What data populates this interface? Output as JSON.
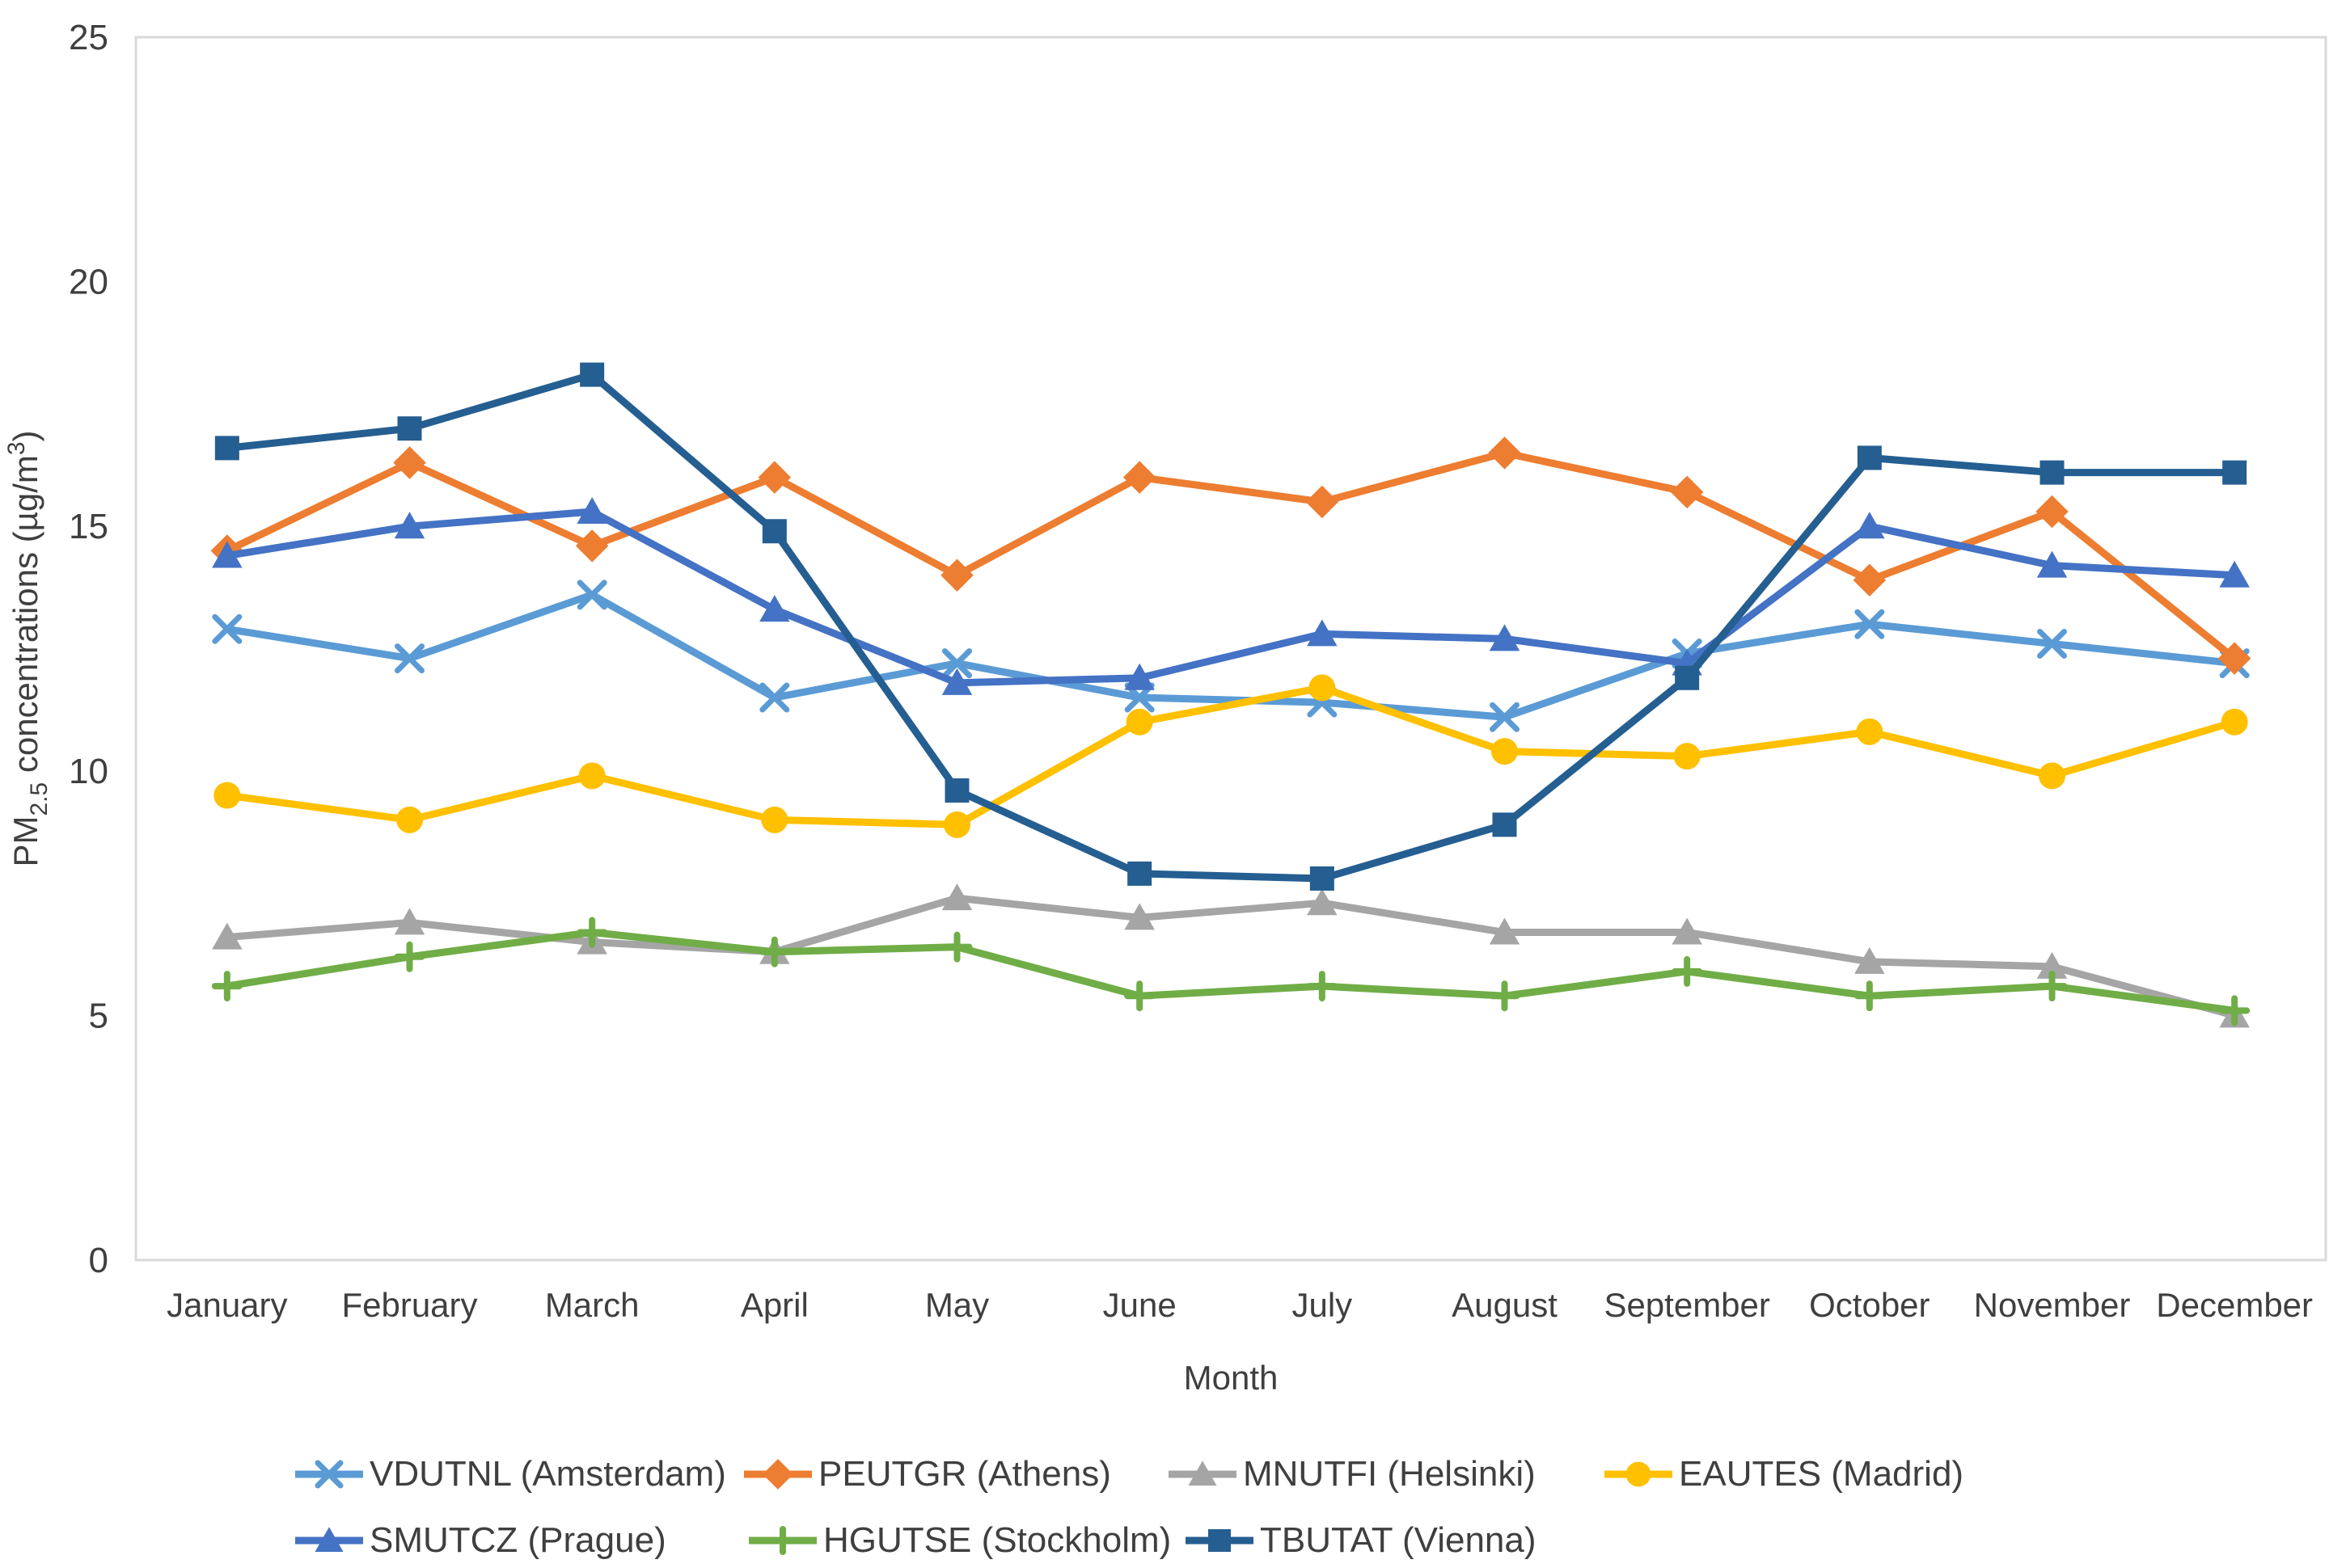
{
  "chart_data": {
    "type": "line",
    "title": "",
    "xlabel": "Month",
    "ylabel": "PM2.5 concentrations (µg/m3)",
    "ylabel_parts": {
      "prefix": "PM",
      "sub": "2.5",
      "mid": " concentrations (µg/m",
      "sup": "3",
      "suffix": ")"
    },
    "ylim": [
      0,
      25
    ],
    "yticks": [
      0,
      5,
      10,
      15,
      20,
      25
    ],
    "grid": false,
    "legend_position": "bottom",
    "categories": [
      "January",
      "February",
      "March",
      "April",
      "May",
      "June",
      "July",
      "August",
      "September",
      "October",
      "November",
      "December"
    ],
    "series": [
      {
        "name": "VDUTNL (Amsterdam)",
        "color": "#5B9BD5",
        "marker": "x",
        "values": [
          12.9,
          12.3,
          13.6,
          11.5,
          12.2,
          11.5,
          11.4,
          11.1,
          12.4,
          13.0,
          12.6,
          12.2
        ]
      },
      {
        "name": "PEUTGR (Athens)",
        "color": "#ED7D31",
        "marker": "diamond",
        "values": [
          14.5,
          16.3,
          14.6,
          16.0,
          14.0,
          16.0,
          15.5,
          16.5,
          15.7,
          13.9,
          15.3,
          12.3
        ]
      },
      {
        "name": "MNUTFI (Helsinki)",
        "color": "#A5A5A5",
        "marker": "triangle",
        "values": [
          6.6,
          6.9,
          6.5,
          6.3,
          7.4,
          7.0,
          7.3,
          6.7,
          6.7,
          6.1,
          6.0,
          5.0
        ]
      },
      {
        "name": "EAUTES (Madrid)",
        "color": "#FFC000",
        "marker": "circle",
        "values": [
          9.5,
          9.0,
          9.9,
          9.0,
          8.9,
          11.0,
          11.7,
          10.4,
          10.3,
          10.8,
          9.9,
          11.0
        ]
      },
      {
        "name": "SMUTCZ (Prague)",
        "color": "#4472C4",
        "marker": "triangle",
        "values": [
          14.4,
          15.0,
          15.3,
          13.3,
          11.8,
          11.9,
          12.8,
          12.7,
          12.2,
          15.0,
          14.2,
          14.0
        ]
      },
      {
        "name": "HGUTSE (Stockholm)",
        "color": "#70AD47",
        "marker": "plus",
        "values": [
          5.6,
          6.2,
          6.7,
          6.3,
          6.4,
          5.4,
          5.6,
          5.4,
          5.9,
          5.4,
          5.6,
          5.1
        ]
      },
      {
        "name": "TBUTAT (Vienna)",
        "color": "#255E91",
        "marker": "square",
        "values": [
          16.6,
          17.0,
          18.1,
          14.9,
          9.6,
          7.9,
          7.8,
          8.9,
          11.9,
          16.4,
          16.1,
          16.1
        ]
      }
    ],
    "legend_rows": [
      [
        0,
        1,
        2,
        3
      ],
      [
        4,
        5,
        6
      ]
    ],
    "axis_color": "#D9D9D9",
    "text_color": "#3F3F3F"
  }
}
